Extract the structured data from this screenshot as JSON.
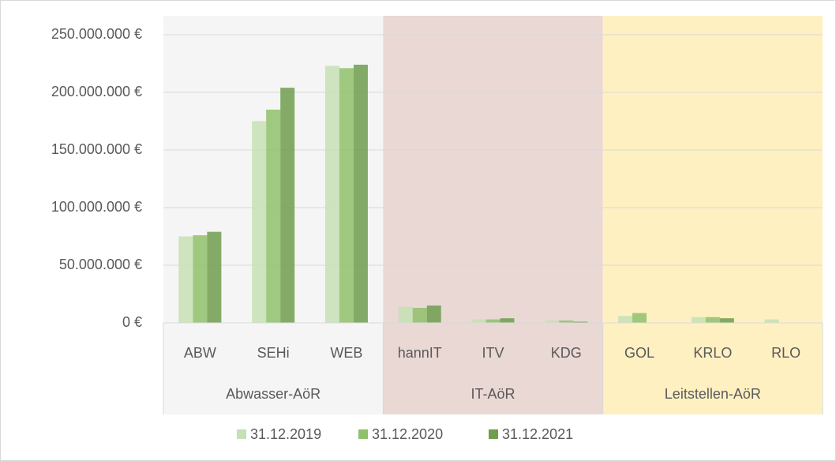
{
  "chart_data": {
    "type": "bar",
    "groups": [
      {
        "name": "Abwasser-AöR",
        "color": "#f5f5f5",
        "categories": [
          "ABW",
          "SEHi",
          "WEB"
        ]
      },
      {
        "name": "IT-AöR",
        "color": "#ead8d5",
        "categories": [
          "hannIT",
          "ITV",
          "KDG"
        ]
      },
      {
        "name": "Leitstellen-AöR",
        "color": "#fff0c2",
        "categories": [
          "GOL",
          "KRLO",
          "RLO"
        ]
      }
    ],
    "series": [
      {
        "name": "31.12.2019",
        "color": "#c5e0b4",
        "values": [
          75000000,
          175000000,
          223000000,
          14000000,
          3000000,
          2000000,
          6000000,
          5000000,
          3000000
        ]
      },
      {
        "name": "31.12.2020",
        "color": "#8fc16a",
        "values": [
          76000000,
          185000000,
          221000000,
          13000000,
          3000000,
          2000000,
          8500000,
          5000000,
          null
        ]
      },
      {
        "name": "31.12.2021",
        "color": "#6f9e4e",
        "values": [
          79000000,
          204000000,
          224000000,
          15000000,
          4000000,
          1000000,
          null,
          4000000,
          null
        ]
      }
    ],
    "ylim": [
      0,
      250000000
    ],
    "yticks": [
      {
        "value": 0,
        "label": "0 €"
      },
      {
        "value": 50000000,
        "label": "50.000.000 €"
      },
      {
        "value": 100000000,
        "label": "100.000.000 €"
      },
      {
        "value": 150000000,
        "label": "150.000.000 €"
      },
      {
        "value": 200000000,
        "label": "200.000.000 €"
      },
      {
        "value": 250000000,
        "label": "250.000.000 €"
      }
    ],
    "grid": true
  }
}
